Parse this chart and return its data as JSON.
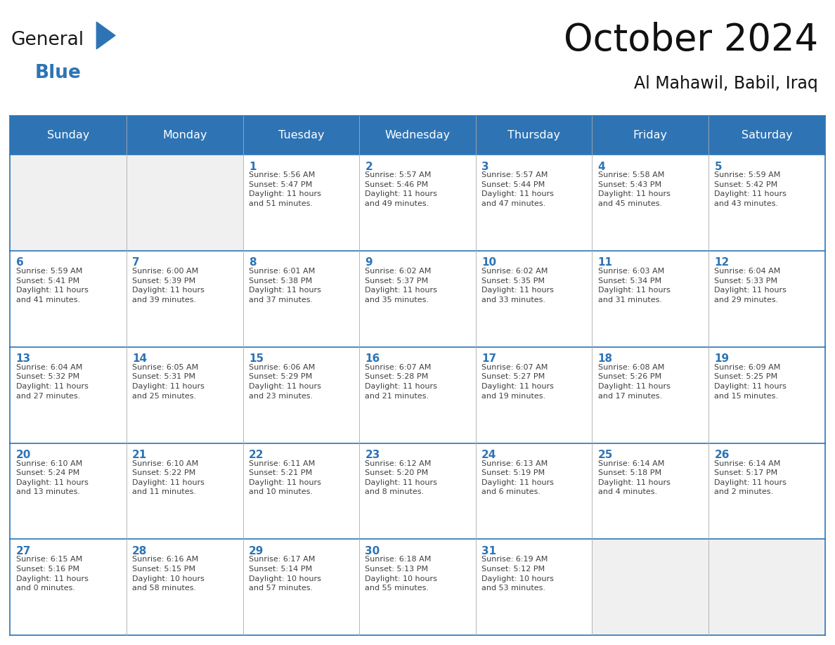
{
  "title": "October 2024",
  "subtitle": "Al Mahawil, Babil, Iraq",
  "header_bg": "#2E74B5",
  "header_text_color": "#FFFFFF",
  "cell_bg_white": "#FFFFFF",
  "cell_bg_gray": "#F0F0F0",
  "day_number_color": "#2E74B5",
  "text_color": "#404040",
  "border_color": "#2E74B5",
  "sep_color": "#AAAAAA",
  "days_of_week": [
    "Sunday",
    "Monday",
    "Tuesday",
    "Wednesday",
    "Thursday",
    "Friday",
    "Saturday"
  ],
  "weeks": [
    [
      {
        "day": "",
        "sunrise": "",
        "sunset": "",
        "daylight": "",
        "gray": true
      },
      {
        "day": "",
        "sunrise": "",
        "sunset": "",
        "daylight": "",
        "gray": true
      },
      {
        "day": "1",
        "sunrise": "5:56 AM",
        "sunset": "5:47 PM",
        "daylight": "11 hours and 51 minutes.",
        "gray": false
      },
      {
        "day": "2",
        "sunrise": "5:57 AM",
        "sunset": "5:46 PM",
        "daylight": "11 hours and 49 minutes.",
        "gray": false
      },
      {
        "day": "3",
        "sunrise": "5:57 AM",
        "sunset": "5:44 PM",
        "daylight": "11 hours and 47 minutes.",
        "gray": false
      },
      {
        "day": "4",
        "sunrise": "5:58 AM",
        "sunset": "5:43 PM",
        "daylight": "11 hours and 45 minutes.",
        "gray": false
      },
      {
        "day": "5",
        "sunrise": "5:59 AM",
        "sunset": "5:42 PM",
        "daylight": "11 hours and 43 minutes.",
        "gray": false
      }
    ],
    [
      {
        "day": "6",
        "sunrise": "5:59 AM",
        "sunset": "5:41 PM",
        "daylight": "11 hours and 41 minutes.",
        "gray": false
      },
      {
        "day": "7",
        "sunrise": "6:00 AM",
        "sunset": "5:39 PM",
        "daylight": "11 hours and 39 minutes.",
        "gray": false
      },
      {
        "day": "8",
        "sunrise": "6:01 AM",
        "sunset": "5:38 PM",
        "daylight": "11 hours and 37 minutes.",
        "gray": false
      },
      {
        "day": "9",
        "sunrise": "6:02 AM",
        "sunset": "5:37 PM",
        "daylight": "11 hours and 35 minutes.",
        "gray": false
      },
      {
        "day": "10",
        "sunrise": "6:02 AM",
        "sunset": "5:35 PM",
        "daylight": "11 hours and 33 minutes.",
        "gray": false
      },
      {
        "day": "11",
        "sunrise": "6:03 AM",
        "sunset": "5:34 PM",
        "daylight": "11 hours and 31 minutes.",
        "gray": false
      },
      {
        "day": "12",
        "sunrise": "6:04 AM",
        "sunset": "5:33 PM",
        "daylight": "11 hours and 29 minutes.",
        "gray": false
      }
    ],
    [
      {
        "day": "13",
        "sunrise": "6:04 AM",
        "sunset": "5:32 PM",
        "daylight": "11 hours and 27 minutes.",
        "gray": false
      },
      {
        "day": "14",
        "sunrise": "6:05 AM",
        "sunset": "5:31 PM",
        "daylight": "11 hours and 25 minutes.",
        "gray": false
      },
      {
        "day": "15",
        "sunrise": "6:06 AM",
        "sunset": "5:29 PM",
        "daylight": "11 hours and 23 minutes.",
        "gray": false
      },
      {
        "day": "16",
        "sunrise": "6:07 AM",
        "sunset": "5:28 PM",
        "daylight": "11 hours and 21 minutes.",
        "gray": false
      },
      {
        "day": "17",
        "sunrise": "6:07 AM",
        "sunset": "5:27 PM",
        "daylight": "11 hours and 19 minutes.",
        "gray": false
      },
      {
        "day": "18",
        "sunrise": "6:08 AM",
        "sunset": "5:26 PM",
        "daylight": "11 hours and 17 minutes.",
        "gray": false
      },
      {
        "day": "19",
        "sunrise": "6:09 AM",
        "sunset": "5:25 PM",
        "daylight": "11 hours and 15 minutes.",
        "gray": false
      }
    ],
    [
      {
        "day": "20",
        "sunrise": "6:10 AM",
        "sunset": "5:24 PM",
        "daylight": "11 hours and 13 minutes.",
        "gray": false
      },
      {
        "day": "21",
        "sunrise": "6:10 AM",
        "sunset": "5:22 PM",
        "daylight": "11 hours and 11 minutes.",
        "gray": false
      },
      {
        "day": "22",
        "sunrise": "6:11 AM",
        "sunset": "5:21 PM",
        "daylight": "11 hours and 10 minutes.",
        "gray": false
      },
      {
        "day": "23",
        "sunrise": "6:12 AM",
        "sunset": "5:20 PM",
        "daylight": "11 hours and 8 minutes.",
        "gray": false
      },
      {
        "day": "24",
        "sunrise": "6:13 AM",
        "sunset": "5:19 PM",
        "daylight": "11 hours and 6 minutes.",
        "gray": false
      },
      {
        "day": "25",
        "sunrise": "6:14 AM",
        "sunset": "5:18 PM",
        "daylight": "11 hours and 4 minutes.",
        "gray": false
      },
      {
        "day": "26",
        "sunrise": "6:14 AM",
        "sunset": "5:17 PM",
        "daylight": "11 hours and 2 minutes.",
        "gray": false
      }
    ],
    [
      {
        "day": "27",
        "sunrise": "6:15 AM",
        "sunset": "5:16 PM",
        "daylight": "11 hours and 0 minutes.",
        "gray": false
      },
      {
        "day": "28",
        "sunrise": "6:16 AM",
        "sunset": "5:15 PM",
        "daylight": "10 hours and 58 minutes.",
        "gray": false
      },
      {
        "day": "29",
        "sunrise": "6:17 AM",
        "sunset": "5:14 PM",
        "daylight": "10 hours and 57 minutes.",
        "gray": false
      },
      {
        "day": "30",
        "sunrise": "6:18 AM",
        "sunset": "5:13 PM",
        "daylight": "10 hours and 55 minutes.",
        "gray": false
      },
      {
        "day": "31",
        "sunrise": "6:19 AM",
        "sunset": "5:12 PM",
        "daylight": "10 hours and 53 minutes.",
        "gray": false
      },
      {
        "day": "",
        "sunrise": "",
        "sunset": "",
        "daylight": "",
        "gray": true
      },
      {
        "day": "",
        "sunrise": "",
        "sunset": "",
        "daylight": "",
        "gray": true
      }
    ]
  ],
  "logo_text1": "General",
  "logo_text2": "Blue",
  "logo_color1": "#1a1a1a",
  "logo_color2": "#2E74B5",
  "logo_triangle_color": "#2E74B5"
}
